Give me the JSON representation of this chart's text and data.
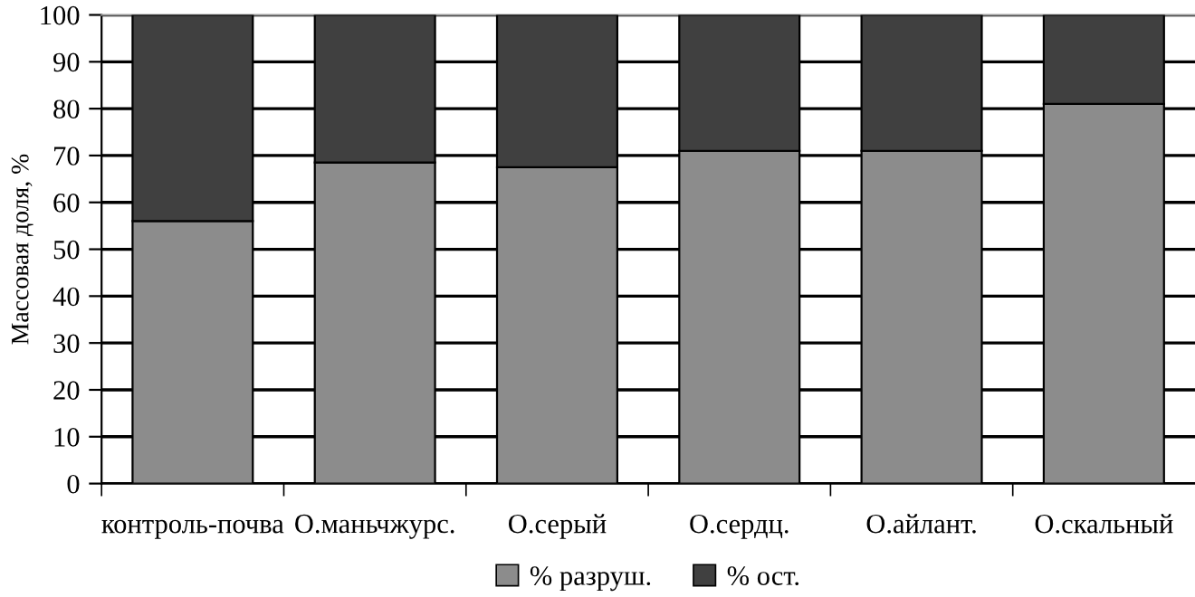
{
  "chart_data": {
    "type": "bar",
    "stacked": true,
    "ylabel": "Массовая доля, %",
    "categories": [
      "контроль-почва",
      "О.маньчжурс.",
      "О.серый",
      "О.сердц.",
      "О.айлант.",
      "О.скальный"
    ],
    "series": [
      {
        "name": "% разруш.",
        "color": "#8c8c8c",
        "values": [
          56,
          68.5,
          67.5,
          71,
          71,
          81
        ]
      },
      {
        "name": "% ост.",
        "color": "#404040",
        "values": [
          44,
          31.5,
          32.5,
          29,
          29,
          19
        ]
      }
    ],
    "ylim": [
      0,
      100
    ],
    "yticks": [
      0,
      10,
      20,
      30,
      40,
      50,
      60,
      70,
      80,
      90,
      100
    ],
    "grid": "y",
    "legend": "bottom"
  }
}
